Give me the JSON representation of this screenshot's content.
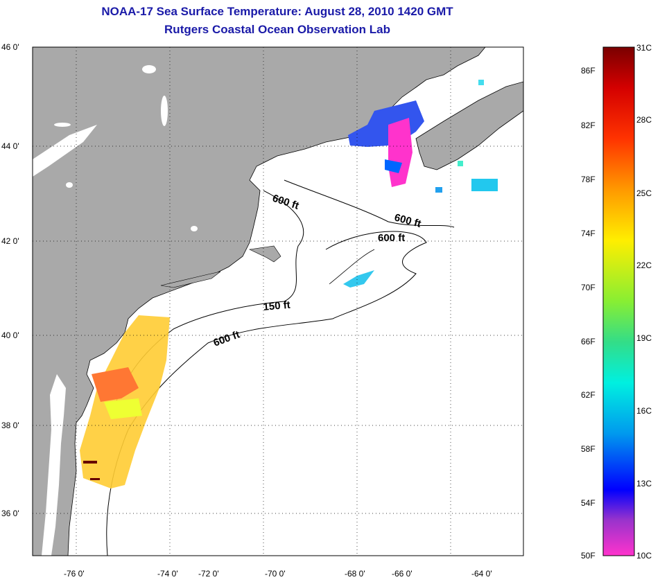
{
  "title": "NOAA-17 Sea Surface Temperature:  August 28, 2010 1420 GMT",
  "subtitle": "Rutgers Coastal Ocean Observation Lab",
  "map": {
    "lat_labels": [
      "46 0'",
      "44 0'",
      "42 0'",
      "40 0'",
      "38 0'",
      "36 0'"
    ],
    "lon_labels": [
      "-76 0'",
      "-74 0'",
      "-72 0'",
      "-70 0'",
      "-68 0'",
      "-66 0'",
      "-64 0'"
    ],
    "contour_labels": [
      "600 ft",
      "600 ft",
      "600 ft",
      "150 ft",
      "600 ft"
    ],
    "colors": {
      "land": "#a9a9a9",
      "water": "#ffffff",
      "title": "#1a1aa8"
    }
  },
  "colorbar": {
    "celsius_labels": [
      "31C",
      "28C",
      "25C",
      "22C",
      "19C",
      "16C",
      "13C",
      "10C"
    ],
    "fahrenheit_labels": [
      "86F",
      "82F",
      "78F",
      "74F",
      "70F",
      "66F",
      "62F",
      "58F",
      "54F",
      "50F"
    ]
  }
}
